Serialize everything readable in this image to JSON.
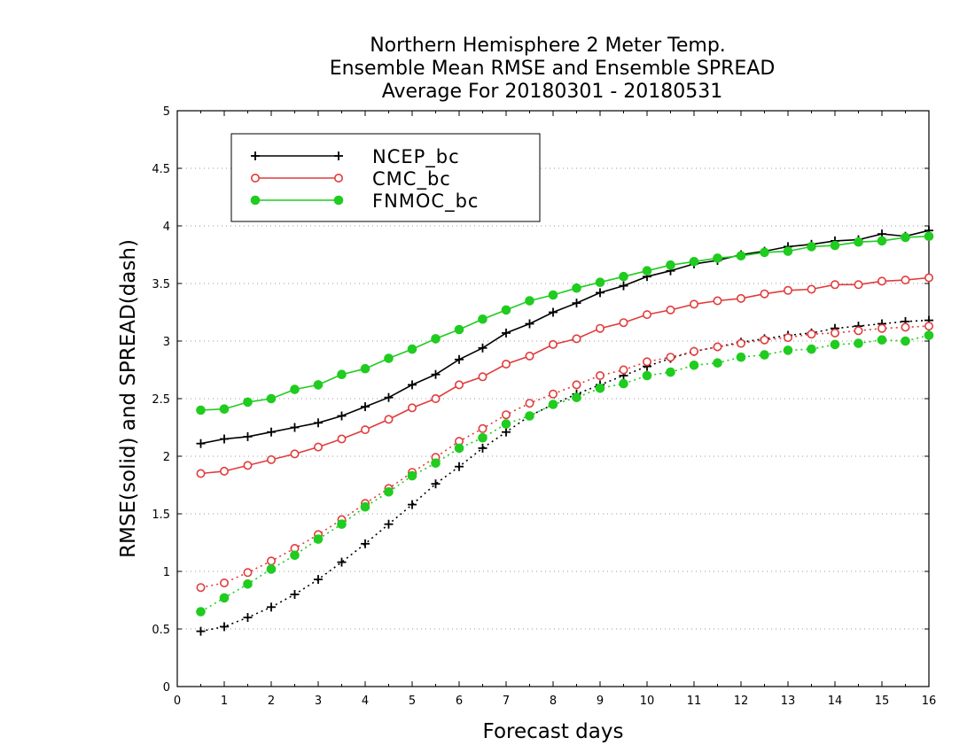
{
  "chart_data": {
    "type": "line",
    "title_lines": [
      "Northern Hemisphere 2 Meter Temp.",
      "Ensemble Mean RMSE and Ensemble SPREAD",
      "Average For 20180301 - 20180531"
    ],
    "xlabel": "Forecast days",
    "ylabel": "RMSE(solid) and SPREAD(dash)",
    "xlim": [
      0,
      16
    ],
    "ylim": [
      0,
      5
    ],
    "xticks": [
      0,
      1,
      2,
      3,
      4,
      5,
      6,
      7,
      8,
      9,
      10,
      11,
      12,
      13,
      14,
      15,
      16
    ],
    "yticks": [
      0,
      0.5,
      1,
      1.5,
      2,
      2.5,
      3,
      3.5,
      4,
      4.5,
      5
    ],
    "ytick_labels": [
      "0",
      "0.5",
      "1",
      "1.5",
      "2",
      "2.5",
      "3",
      "3.5",
      "4",
      "4.5",
      "5"
    ],
    "grid": true,
    "legend_position": "top-left",
    "x": [
      0.5,
      1,
      1.5,
      2,
      2.5,
      3,
      3.5,
      4,
      4.5,
      5,
      5.5,
      6,
      6.5,
      7,
      7.5,
      8,
      8.5,
      9,
      9.5,
      10,
      10.5,
      11,
      11.5,
      12,
      12.5,
      13,
      13.5,
      14,
      14.5,
      15,
      15.5,
      16
    ],
    "series": [
      {
        "name": "NCEP_bc",
        "color": "#000000",
        "marker": "plus",
        "rmse": [
          2.11,
          2.15,
          2.17,
          2.21,
          2.25,
          2.29,
          2.35,
          2.43,
          2.51,
          2.62,
          2.71,
          2.84,
          2.94,
          3.07,
          3.15,
          3.25,
          3.33,
          3.42,
          3.48,
          3.56,
          3.61,
          3.67,
          3.7,
          3.75,
          3.78,
          3.82,
          3.84,
          3.87,
          3.88,
          3.93,
          3.91,
          3.96
        ],
        "spread": [
          0.48,
          0.52,
          0.6,
          0.69,
          0.8,
          0.93,
          1.08,
          1.24,
          1.41,
          1.58,
          1.76,
          1.91,
          2.07,
          2.21,
          2.35,
          2.45,
          2.54,
          2.62,
          2.7,
          2.78,
          2.85,
          2.91,
          2.95,
          2.99,
          3.02,
          3.05,
          3.07,
          3.11,
          3.13,
          3.15,
          3.17,
          3.18
        ]
      },
      {
        "name": "CMC_bc",
        "color": "#e23b3b",
        "marker": "open-circle",
        "rmse": [
          1.85,
          1.87,
          1.92,
          1.97,
          2.02,
          2.08,
          2.15,
          2.23,
          2.32,
          2.42,
          2.5,
          2.62,
          2.69,
          2.8,
          2.87,
          2.97,
          3.02,
          3.11,
          3.16,
          3.23,
          3.27,
          3.32,
          3.35,
          3.37,
          3.41,
          3.44,
          3.45,
          3.49,
          3.49,
          3.52,
          3.53,
          3.55
        ],
        "spread": [
          0.86,
          0.9,
          0.99,
          1.09,
          1.2,
          1.32,
          1.45,
          1.59,
          1.72,
          1.86,
          1.99,
          2.13,
          2.24,
          2.36,
          2.46,
          2.54,
          2.62,
          2.7,
          2.75,
          2.82,
          2.86,
          2.91,
          2.95,
          2.98,
          3.01,
          3.03,
          3.06,
          3.07,
          3.09,
          3.11,
          3.12,
          3.13
        ]
      },
      {
        "name": "FNMOC_bc",
        "color": "#1fcc1f",
        "marker": "filled-circle",
        "rmse": [
          2.4,
          2.41,
          2.47,
          2.5,
          2.58,
          2.62,
          2.71,
          2.76,
          2.85,
          2.93,
          3.02,
          3.1,
          3.19,
          3.27,
          3.35,
          3.4,
          3.46,
          3.51,
          3.56,
          3.61,
          3.66,
          3.69,
          3.72,
          3.74,
          3.77,
          3.78,
          3.82,
          3.83,
          3.86,
          3.87,
          3.9,
          3.91
        ],
        "spread": [
          0.65,
          0.77,
          0.89,
          1.02,
          1.14,
          1.28,
          1.41,
          1.56,
          1.69,
          1.83,
          1.94,
          2.07,
          2.16,
          2.28,
          2.35,
          2.45,
          2.51,
          2.59,
          2.63,
          2.7,
          2.73,
          2.79,
          2.81,
          2.86,
          2.88,
          2.92,
          2.93,
          2.97,
          2.98,
          3.01,
          3.0,
          3.05
        ]
      }
    ]
  }
}
